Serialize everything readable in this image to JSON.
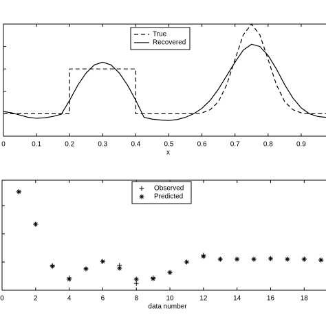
{
  "chart_data": [
    {
      "type": "line",
      "xlabel": "x",
      "x": [
        0,
        0.025,
        0.05,
        0.075,
        0.1,
        0.125,
        0.15,
        0.175,
        0.2,
        0.2,
        0.225,
        0.25,
        0.275,
        0.3,
        0.325,
        0.35,
        0.375,
        0.4,
        0.4,
        0.425,
        0.45,
        0.475,
        0.5,
        0.525,
        0.55,
        0.575,
        0.6,
        0.625,
        0.65,
        0.675,
        0.7,
        0.725,
        0.75,
        0.775,
        0.8,
        0.825,
        0.85,
        0.875,
        0.9,
        0.925,
        0.95,
        0.975
      ],
      "series": [
        {
          "name": "True",
          "color": "#000000",
          "linestyle": "dashed",
          "values": [
            0,
            0,
            0,
            0,
            0,
            0,
            0,
            0,
            0,
            1,
            1,
            1,
            1,
            1,
            1,
            1,
            1,
            1,
            0,
            0,
            0,
            0,
            0,
            0,
            0,
            0,
            0.02,
            0.09,
            0.27,
            0.65,
            1.21,
            1.76,
            2,
            1.76,
            1.21,
            0.65,
            0.27,
            0.09,
            0.02,
            0,
            0,
            0
          ]
        },
        {
          "name": "Recovered",
          "color": "#000000",
          "linestyle": "solid",
          "values": [
            0.05,
            0.02,
            -0.03,
            -0.08,
            -0.1,
            -0.09,
            -0.06,
            -0.01,
            0.3,
            0.3,
            0.64,
            0.91,
            1.09,
            1.15,
            1.09,
            0.91,
            0.64,
            0.3,
            0.3,
            -0.08,
            -0.12,
            -0.14,
            -0.15,
            -0.13,
            -0.08,
            0,
            0.12,
            0.3,
            0.55,
            0.85,
            1.15,
            1.42,
            1.55,
            1.5,
            1.3,
            1,
            0.65,
            0.35,
            0.13,
            0,
            -0.06,
            -0.08
          ]
        }
      ],
      "xlim": [
        0,
        0.975
      ],
      "xticks": [
        0,
        0.1,
        0.2,
        0.3,
        0.4,
        0.5,
        0.6,
        0.7,
        0.8,
        0.9
      ],
      "ylim": [
        -0.5,
        2
      ],
      "yticks": [
        0,
        0.5,
        1,
        1.5
      ],
      "legend": "top-center"
    },
    {
      "type": "scatter",
      "xlabel": "data number",
      "x": [
        1,
        2,
        3,
        4,
        5,
        6,
        7,
        8,
        9,
        10,
        11,
        12,
        13,
        14,
        15,
        16,
        17,
        18,
        19
      ],
      "series": [
        {
          "name": "Observed",
          "color": "#000000",
          "marker": "+",
          "values": [
            3.49,
            2.34,
            0.87,
            0.44,
            0.76,
            1.02,
            0.88,
            0.24,
            0.44,
            0.63,
            1.0,
            1.24,
            1.1,
            1.1,
            1.1,
            1.12,
            1.1,
            1.1,
            1.07
          ]
        },
        {
          "name": "Predicted",
          "color": "#000000",
          "marker": "*",
          "values": [
            3.49,
            2.34,
            0.85,
            0.39,
            0.76,
            1.02,
            0.78,
            0.39,
            0.41,
            0.63,
            1.0,
            1.2,
            1.1,
            1.1,
            1.1,
            1.12,
            1.1,
            1.1,
            1.07
          ]
        }
      ],
      "xlim": [
        0,
        19.3
      ],
      "xticks": [
        0,
        2,
        4,
        6,
        8,
        10,
        12,
        14,
        16,
        18
      ],
      "ylim": [
        0,
        3.9
      ],
      "yticks": [
        1,
        2,
        3
      ],
      "legend": "top-center"
    }
  ]
}
